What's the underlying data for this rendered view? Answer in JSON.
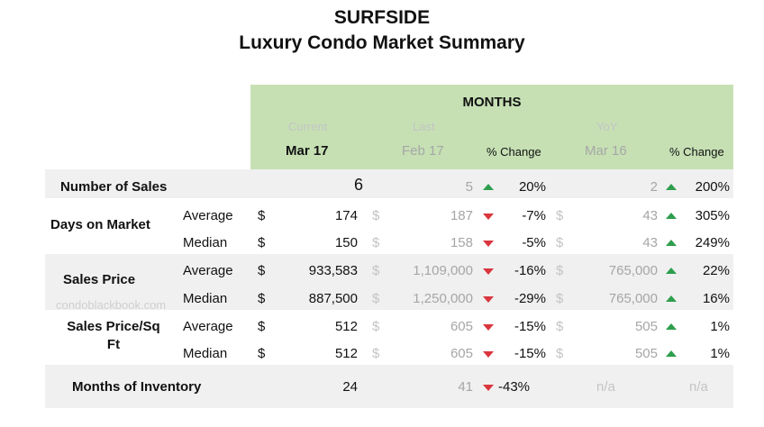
{
  "title": "SURFSIDE",
  "subtitle": "Luxury Condo Market Summary",
  "header": {
    "group": "MONTHS",
    "current_label": "Current",
    "current_month": "Mar 17",
    "last_label": "Last",
    "last_month": "Feb 17",
    "pct_change_1": "% Change",
    "yoy_label": "YoY",
    "yoy_month": "Mar 16",
    "pct_change_2": "% Change"
  },
  "watermark": "condoblackbook.com",
  "currency": "$",
  "na": "n/a",
  "rows": [
    {
      "group": "Number of Sales",
      "sub": "",
      "cur": "6",
      "last": "5",
      "trend1": "up",
      "pct1": "20%",
      "yoy": "2",
      "trend2": "up",
      "pct2": "200%"
    },
    {
      "group": "Days on Market",
      "sub": "Average",
      "cur": "174",
      "last": "187",
      "trend1": "down",
      "pct1": "-7%",
      "yoy": "43",
      "trend2": "up",
      "pct2": "305%"
    },
    {
      "group": "",
      "sub": "Median",
      "cur": "150",
      "last": "158",
      "trend1": "down",
      "pct1": "-5%",
      "yoy": "43",
      "trend2": "up",
      "pct2": "249%"
    },
    {
      "group": "Sales Price",
      "sub": "Average",
      "cur": "933,583",
      "last": "1,109,000",
      "trend1": "down",
      "pct1": "-16%",
      "yoy": "765,000",
      "trend2": "up",
      "pct2": "22%"
    },
    {
      "group": "",
      "sub": "Median",
      "cur": "887,500",
      "last": "1,250,000",
      "trend1": "down",
      "pct1": "-29%",
      "yoy": "765,000",
      "trend2": "up",
      "pct2": "16%"
    },
    {
      "group": "Sales Price/Sq Ft",
      "sub": "Average",
      "cur": "512",
      "last": "605",
      "trend1": "down",
      "pct1": "-15%",
      "yoy": "505",
      "trend2": "up",
      "pct2": "1%"
    },
    {
      "group": "",
      "sub": "Median",
      "cur": "512",
      "last": "605",
      "trend1": "down",
      "pct1": "-15%",
      "yoy": "505",
      "trend2": "up",
      "pct2": "1%"
    },
    {
      "group": "Months of Inventory",
      "sub": "",
      "cur": "24",
      "last": "41",
      "trend1": "down",
      "pct1": "-43%",
      "yoy": "n/a",
      "trend2": "",
      "pct2": "n/a"
    }
  ]
}
